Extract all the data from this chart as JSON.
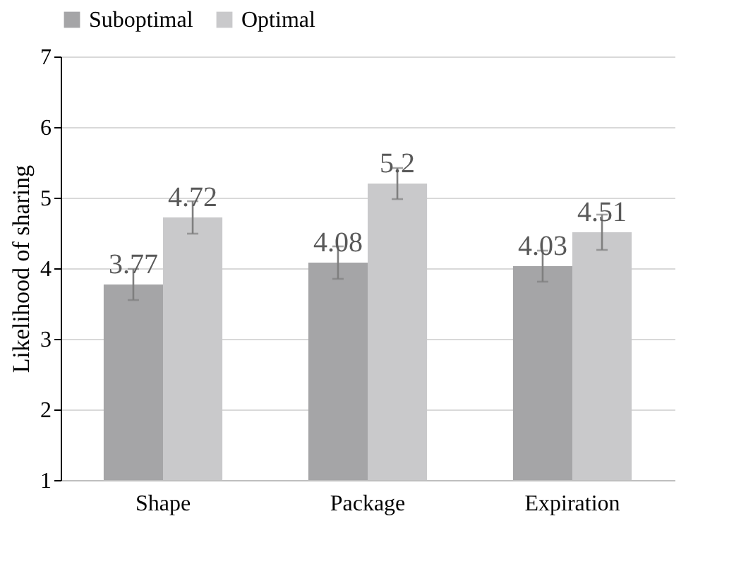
{
  "chart_data": {
    "type": "bar",
    "ylabel": "Likelihood of sharing",
    "categories": [
      "Shape",
      "Package",
      "Expiration"
    ],
    "series": [
      {
        "name": "Suboptimal",
        "color": "#a5a5a7",
        "values": [
          3.77,
          4.08,
          4.03
        ],
        "errors": [
          0.22,
          0.23,
          0.22
        ]
      },
      {
        "name": "Optimal",
        "color": "#c9c9cb",
        "values": [
          4.72,
          5.2,
          4.51
        ],
        "errors": [
          0.23,
          0.22,
          0.25
        ]
      }
    ],
    "ylim": [
      1,
      7
    ],
    "yticks": [
      1,
      2,
      3,
      4,
      5,
      6,
      7
    ],
    "grid": "y",
    "legend": "top",
    "data_labels": true
  }
}
